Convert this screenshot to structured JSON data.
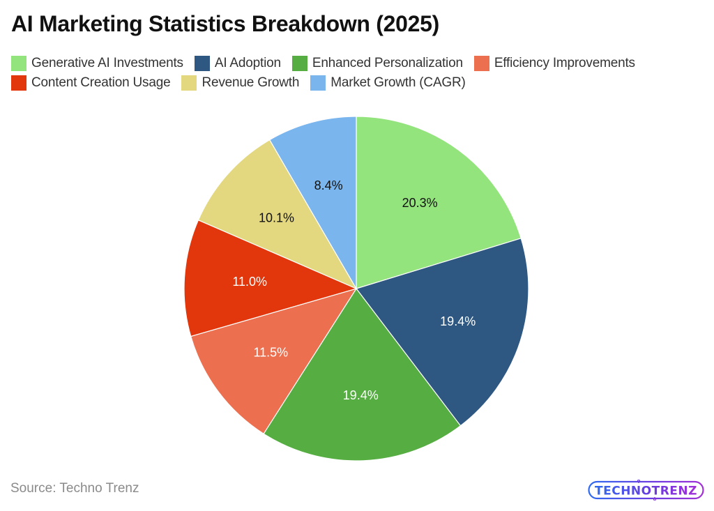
{
  "title": "AI Marketing Statistics Breakdown (2025)",
  "legend": {
    "row1": [
      {
        "label": "Generative AI Investments",
        "color": "#93E47C"
      },
      {
        "label": "AI Adoption",
        "color": "#2E5781"
      },
      {
        "label": "Enhanced Personalization",
        "color": "#56AE42"
      },
      {
        "label": "Efficiency Improvements",
        "color": "#EC7050"
      }
    ],
    "row2": [
      {
        "label": "Content Creation Usage",
        "color": "#E2370C"
      },
      {
        "label": "Revenue Growth",
        "color": "#E3D880"
      },
      {
        "label": "Market Growth (CAGR)",
        "color": "#7AB5EE"
      }
    ]
  },
  "chart_data": {
    "type": "pie",
    "title": "AI Marketing Statistics Breakdown (2025)",
    "categories": [
      "Generative AI Investments",
      "AI Adoption",
      "Enhanced Personalization",
      "Efficiency Improvements",
      "Content Creation Usage",
      "Revenue Growth",
      "Market Growth (CAGR)"
    ],
    "values": [
      20.3,
      19.4,
      19.4,
      11.5,
      11.0,
      10.1,
      8.4
    ],
    "labels": [
      "20.3%",
      "19.4%",
      "19.4%",
      "11.5%",
      "11.0%",
      "10.1%",
      "8.4%"
    ],
    "colors": [
      "#93E47C",
      "#2E5781",
      "#56AE42",
      "#EC7050",
      "#E2370C",
      "#E3D880",
      "#7AB5EE"
    ],
    "label_colors": [
      "#111111",
      "#ffffff",
      "#ffffff",
      "#ffffff",
      "#ffffff",
      "#111111",
      "#111111"
    ],
    "start_angle": "12 o'clock",
    "direction": "clockwise",
    "legend_position": "top",
    "xlabel": "",
    "ylabel": ""
  },
  "footer": {
    "source": "Source: Techno Trenz",
    "logo_text": "TECHNOTRENZ"
  }
}
